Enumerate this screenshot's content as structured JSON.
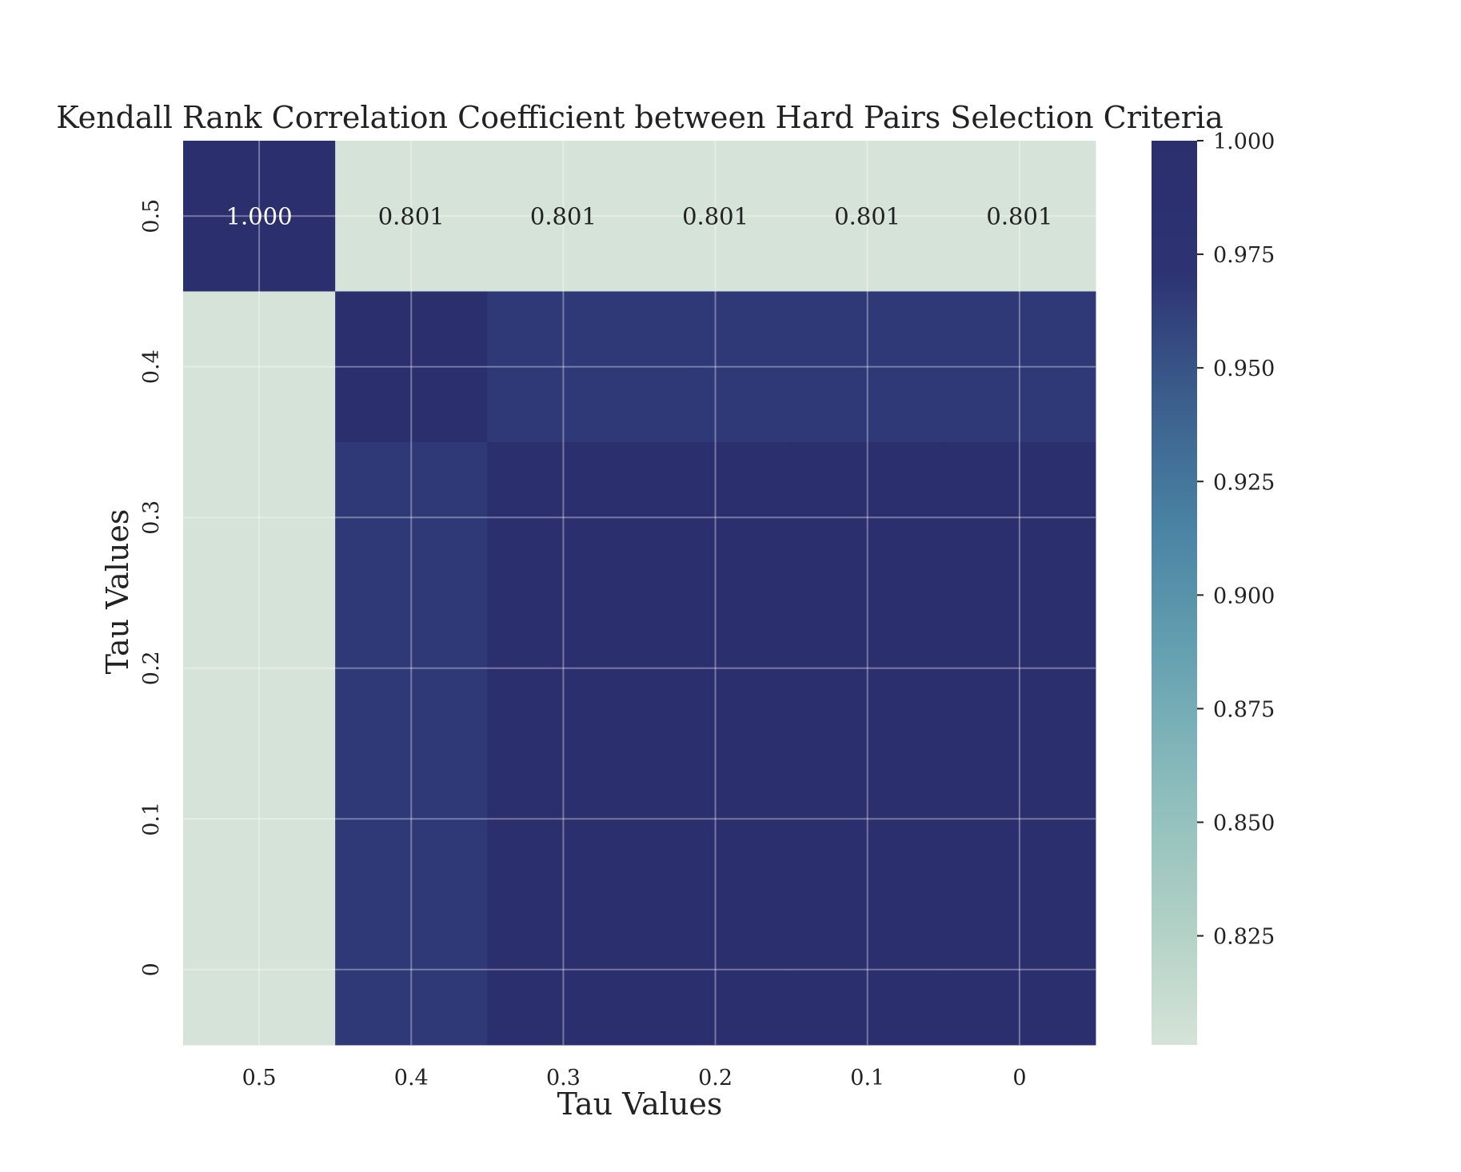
{
  "chart_data": {
    "type": "heatmap",
    "title": "Kendall Rank Correlation Coefficient between Hard Pairs Selection Criteria",
    "xlabel": "Tau Values",
    "ylabel": "Tau Values",
    "x_categories": [
      "0.5",
      "0.4",
      "0.3",
      "0.2",
      "0.1",
      "0"
    ],
    "y_categories": [
      "0.5",
      "0.4",
      "0.3",
      "0.2",
      "0.1",
      "0"
    ],
    "values": [
      [
        1.0,
        0.801,
        0.801,
        0.801,
        0.801,
        0.801
      ],
      [
        0.801,
        1.0,
        0.967,
        0.967,
        0.967,
        0.967
      ],
      [
        0.801,
        0.967,
        1.0,
        0.998,
        0.998,
        0.998
      ],
      [
        0.801,
        0.967,
        0.998,
        1.0,
        0.999,
        0.999
      ],
      [
        0.801,
        0.967,
        0.998,
        0.999,
        1.0,
        0.999
      ],
      [
        0.801,
        0.967,
        0.998,
        0.999,
        0.999,
        1.0
      ]
    ],
    "annotated_rows": [
      0
    ],
    "annotations": [
      [
        "1.000",
        "0.801",
        "0.801",
        "0.801",
        "0.801",
        "0.801"
      ]
    ],
    "colorbar": {
      "min": 0.801,
      "max": 1.0,
      "ticks": [
        "1.000",
        "0.975",
        "0.950",
        "0.925",
        "0.900",
        "0.875",
        "0.850",
        "0.825"
      ],
      "tick_values": [
        1.0,
        0.975,
        0.95,
        0.925,
        0.9,
        0.875,
        0.85,
        0.825
      ],
      "colors": [
        "#d6e3d8",
        "#aecfc4",
        "#8bbcbc",
        "#66a1b1",
        "#4a83a4",
        "#3b5e8c",
        "#2d3273",
        "#2b2f6e"
      ]
    },
    "grid": true
  }
}
